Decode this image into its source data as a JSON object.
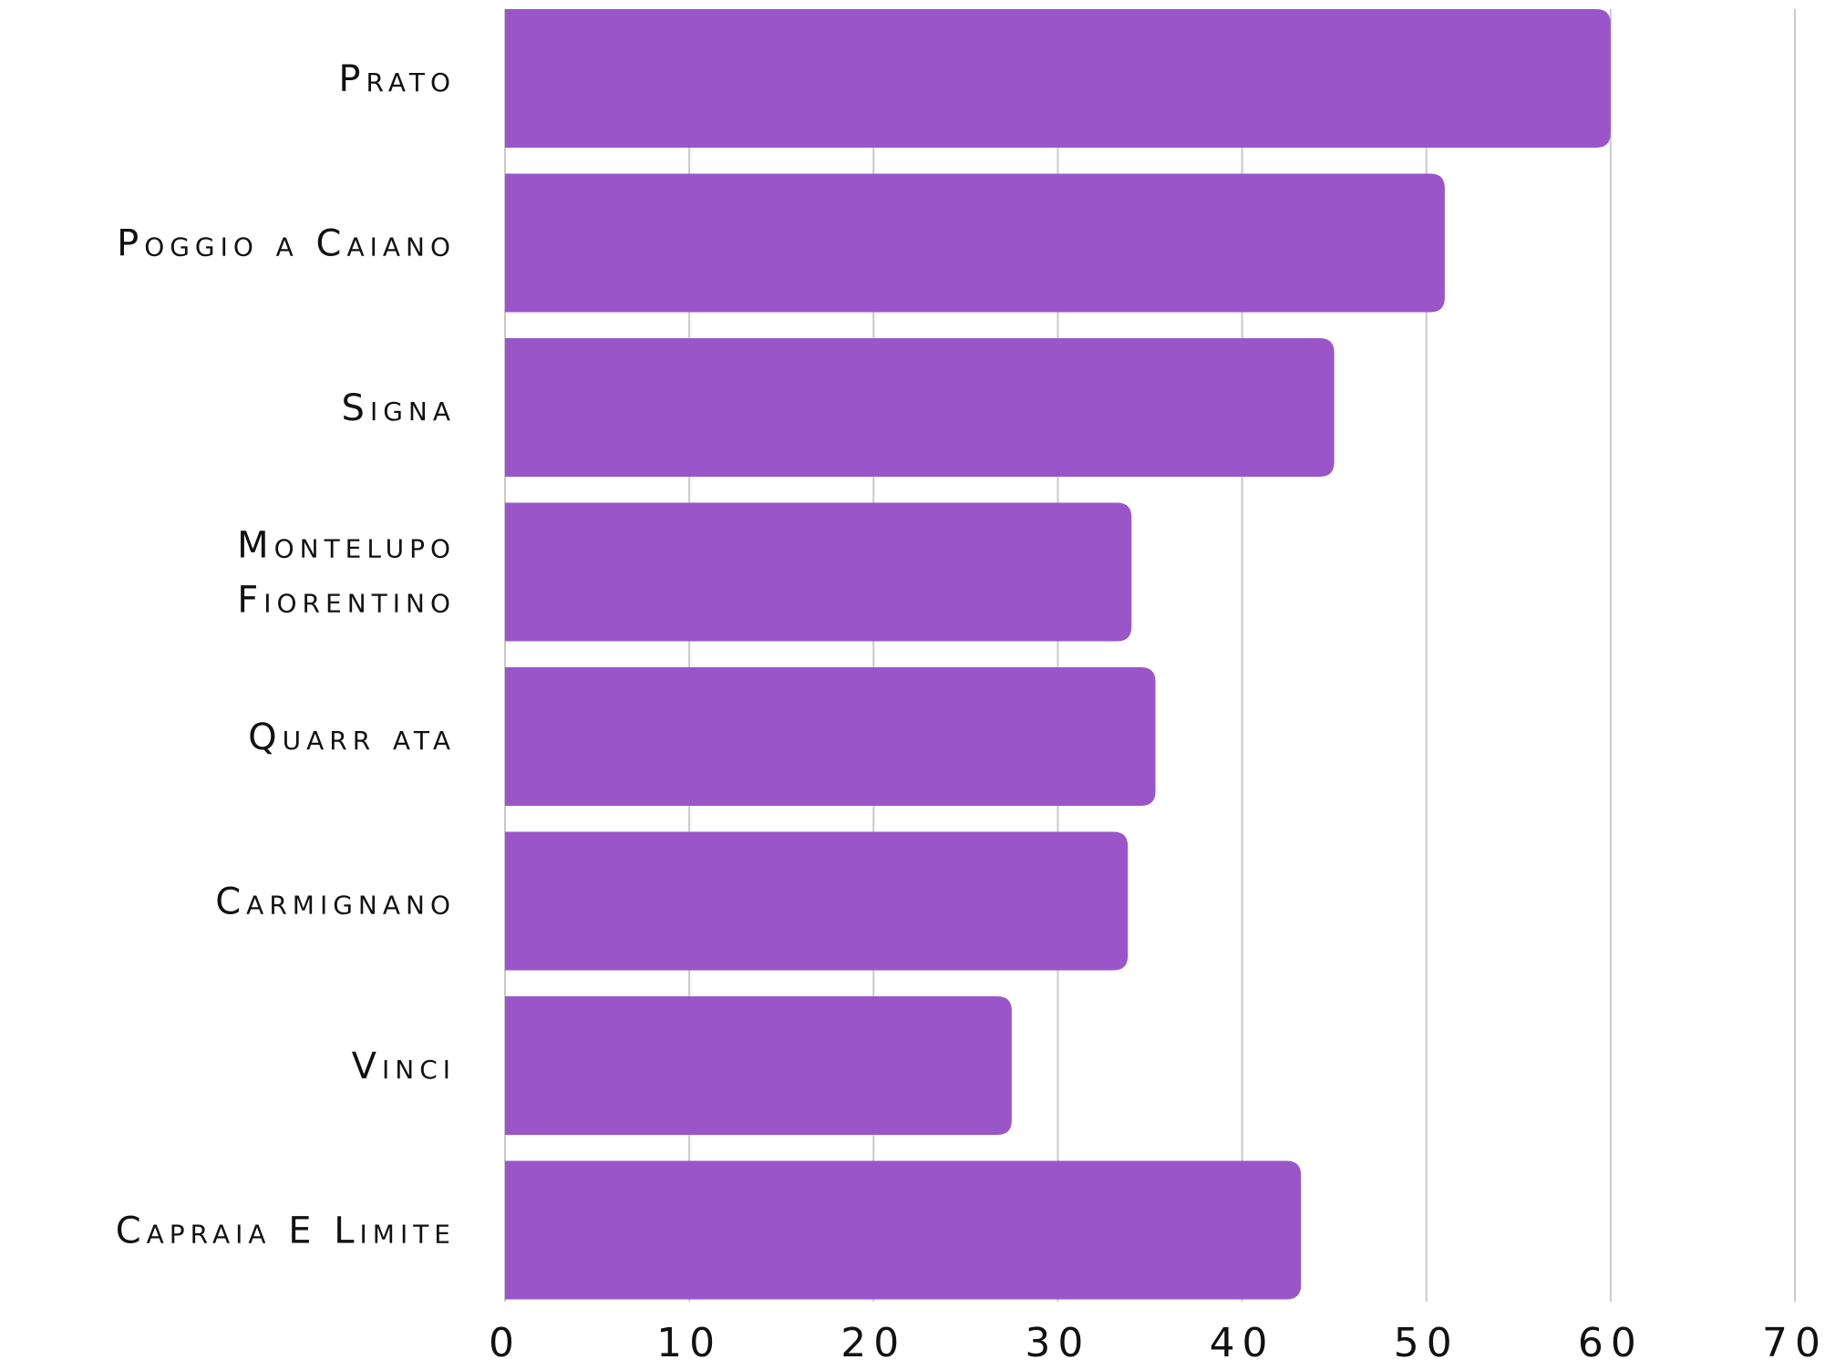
{
  "chart_data": {
    "type": "bar",
    "orientation": "horizontal",
    "title": "",
    "xlabel": "",
    "ylabel": "",
    "categories": [
      [
        "Prato"
      ],
      [
        "Poggio a Caiano"
      ],
      [
        "Signa"
      ],
      [
        "Montelupo",
        "Fiorentino"
      ],
      [
        "Quarr ata"
      ],
      [
        "Carmignano"
      ],
      [
        "Vinci"
      ],
      [
        "Capraia E Limite"
      ]
    ],
    "values": [
      60,
      51,
      45,
      34,
      35.3,
      33.8,
      27.5,
      43.2
    ],
    "xlim": [
      0,
      70
    ],
    "xticks": [
      0,
      10,
      20,
      30,
      40,
      50,
      60,
      70
    ],
    "grid": "vertical",
    "legend": "none",
    "colors": {
      "bar": "#9a56c9",
      "grid": "#c9c9c9",
      "text": "#111111"
    }
  }
}
